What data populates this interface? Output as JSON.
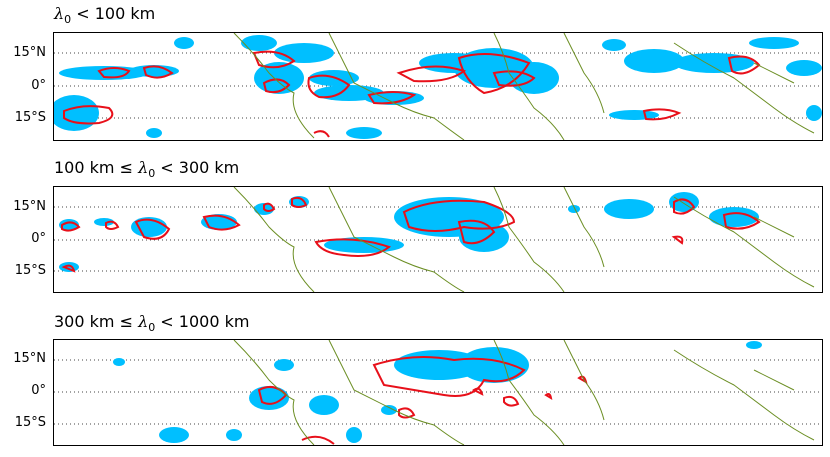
{
  "panels": [
    {
      "title_prefix": "",
      "title_symbol": "λ",
      "title_subscript": "0",
      "title_suffix": " < 100 km"
    },
    {
      "title_prefix": "100 km ≤ ",
      "title_symbol": "λ",
      "title_subscript": "0",
      "title_suffix": " < 300 km"
    },
    {
      "title_prefix": "300 km ≤ ",
      "title_symbol": "λ",
      "title_subscript": "0",
      "title_suffix": " < 1000 km"
    }
  ],
  "lat_ticks": [
    "15°N",
    "0°",
    "15°S"
  ],
  "colors": {
    "fill": "#00bfff",
    "contour": "#e8101a",
    "coast": "#6b8e23",
    "grid": "#444444"
  }
}
